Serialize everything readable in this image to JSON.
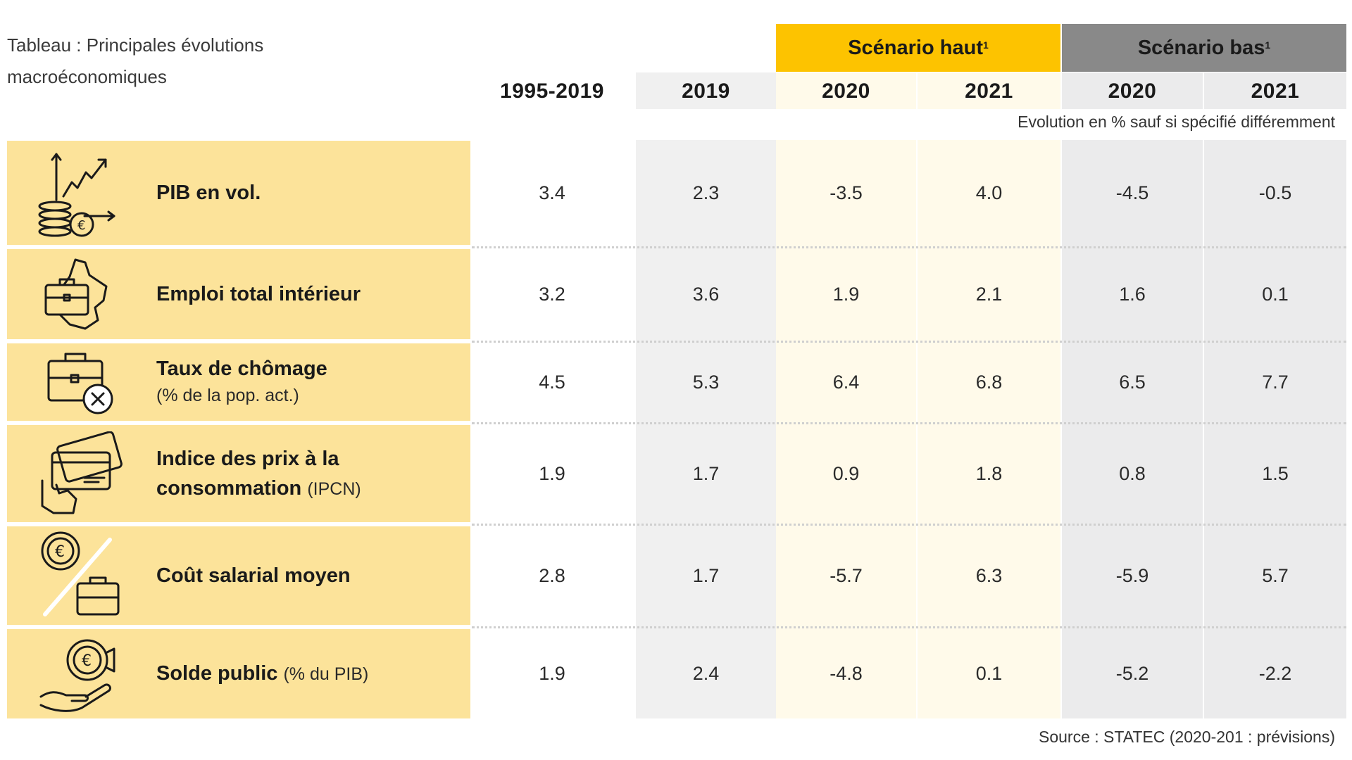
{
  "title": "Tableau : Principales évolutions macroéconomiques",
  "scenarios": {
    "high": {
      "label": "Scénario haut",
      "note": "1",
      "color": "#fdc300"
    },
    "low": {
      "label": "Scénario bas",
      "note": "1",
      "color": "#898989"
    }
  },
  "columns": [
    "1995-2019",
    "2019",
    "2020",
    "2021",
    "2020",
    "2021"
  ],
  "units_note": "Evolution en % sauf si spécifié différemment",
  "rows": [
    {
      "label": "PIB en vol.",
      "sublabel": "",
      "icon": "gdp-growth-coins-icon",
      "values": [
        "3.4",
        "2.3",
        "-3.5",
        "4.0",
        "-4.5",
        "-0.5"
      ]
    },
    {
      "label": "Emploi total intérieur",
      "sublabel": "",
      "icon": "briefcase-map-icon",
      "values": [
        "3.2",
        "3.6",
        "1.9",
        "2.1",
        "1.6",
        "0.1"
      ]
    },
    {
      "label": "Taux de chômage",
      "sublabel": "(% de la pop. act.)",
      "icon": "briefcase-cancel-icon",
      "values": [
        "4.5",
        "5.3",
        "6.4",
        "6.8",
        "6.5",
        "7.7"
      ]
    },
    {
      "label": "Indice des prix à la consommation",
      "sublabel": "(IPCN)",
      "icon": "credit-card-hand-icon",
      "values": [
        "1.9",
        "1.7",
        "0.9",
        "1.8",
        "0.8",
        "1.5"
      ]
    },
    {
      "label": "Coût salarial moyen",
      "sublabel": "",
      "icon": "euro-briefcase-icon",
      "values": [
        "2.8",
        "1.7",
        "-5.7",
        "6.3",
        "-5.9",
        "5.7"
      ]
    },
    {
      "label": "Solde public",
      "sublabel": "(% du PIB)",
      "icon": "euro-hand-icon",
      "values": [
        "1.9",
        "2.4",
        "-4.8",
        "0.1",
        "-5.2",
        "-2.2"
      ]
    }
  ],
  "source": "Source : STATEC (2020-201 : prévisions)",
  "colors": {
    "label_bg": "#fce39a",
    "high_col_bg": "#fffaea",
    "low_col_bg": "#ebebec",
    "base_col_bg": "#f0f0f0"
  }
}
